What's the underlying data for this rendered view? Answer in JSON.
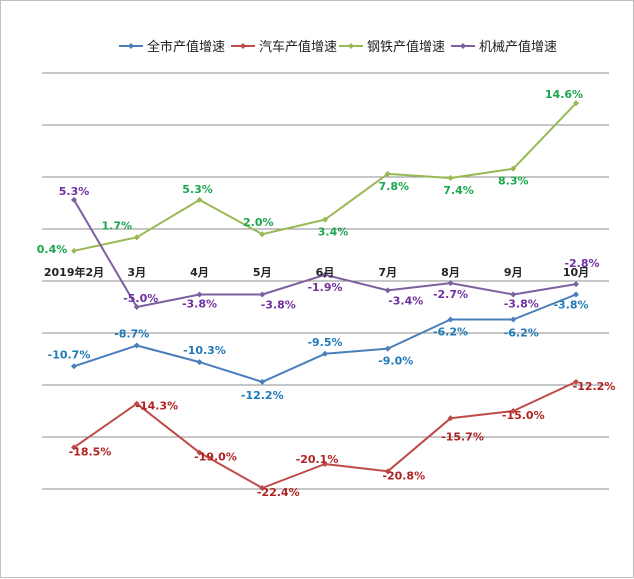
{
  "chart_data": {
    "type": "line",
    "categories": [
      "2019年2月",
      "3月",
      "4月",
      "5月",
      "6月",
      "7月",
      "8月",
      "9月",
      "10月"
    ],
    "ylim": [
      -27.5,
      22.5
    ],
    "grid": true,
    "legend_position": "top",
    "series": [
      {
        "name": "全市产值增速",
        "color": "#4a7ebb",
        "label_color": "#1f7ab8",
        "values": [
          -10.7,
          -8.7,
          -10.3,
          -12.2,
          -9.5,
          -9.0,
          -6.2,
          -6.2,
          -3.8
        ],
        "labels": [
          "-10.7%",
          "-8.7%",
          "-10.3%",
          "-12.2%",
          "-9.5%",
          "-9.0%",
          "-6.2%",
          "-6.2%",
          "-3.8%"
        ]
      },
      {
        "name": "汽车产值增速",
        "color": "#be4b48",
        "label_color": "#b22222",
        "values": [
          -18.5,
          -14.3,
          -19.0,
          -22.4,
          -20.1,
          -20.8,
          -15.7,
          -15.0,
          -12.2
        ],
        "labels": [
          "-18.5%",
          "-14.3%",
          "-19.0%",
          "-22.4%",
          "-20.1%",
          "-20.8%",
          "-15.7%",
          "-15.0%",
          "-12.2%"
        ]
      },
      {
        "name": "钢铁产值增速",
        "color": "#98b954",
        "label_color": "#1aa64f",
        "values": [
          0.4,
          1.7,
          5.3,
          2.0,
          3.4,
          7.8,
          7.4,
          8.3,
          14.6
        ],
        "labels": [
          "0.4%",
          "1.7%",
          "5.3%",
          "2.0%",
          "3.4%",
          "7.8%",
          "7.4%",
          "8.3%",
          "14.6%"
        ]
      },
      {
        "name": "机械产值增速",
        "color": "#7d60a0",
        "label_color": "#7030a0",
        "values": [
          5.3,
          -5.0,
          -3.8,
          -3.8,
          -1.9,
          -3.4,
          -2.7,
          -3.8,
          -2.8
        ],
        "labels": [
          "5.3%",
          "-5.0%",
          "-3.8%",
          "-3.8%",
          "-1.9%",
          "-3.4%",
          "-2.7%",
          "-3.8%",
          "-2.8%"
        ]
      }
    ]
  }
}
